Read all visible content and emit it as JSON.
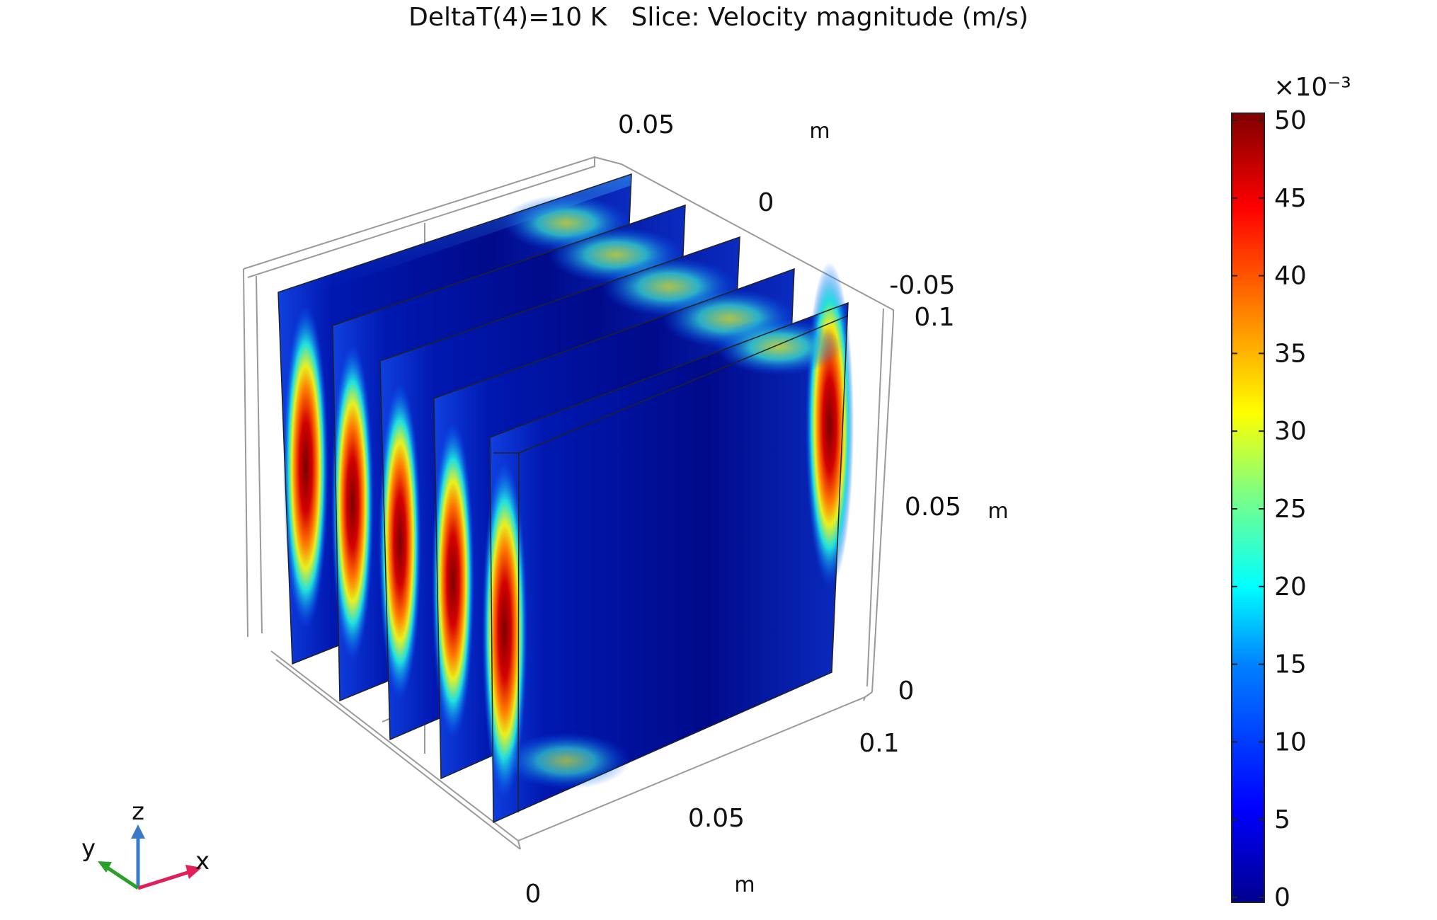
{
  "plot": {
    "title": "DeltaT(4)=10 K   Slice: Velocity magnitude (m/s)"
  },
  "axes": {
    "y_axis": {
      "ticks": [
        "0.05",
        "0",
        "-0.05"
      ],
      "unit": "m"
    },
    "z_axis": {
      "ticks": [
        "0.1",
        "0.05",
        "0"
      ],
      "unit": "m"
    },
    "x_axis": {
      "ticks": [
        "0.1",
        "0.05",
        "0"
      ],
      "unit": "m"
    }
  },
  "colorbar": {
    "multiplier": "×10⁻³",
    "ticks": [
      "50",
      "45",
      "40",
      "35",
      "30",
      "25",
      "20",
      "15",
      "10",
      "5",
      "0"
    ],
    "min": 0,
    "max": 50,
    "colormap": [
      "#00008f",
      "#0000ff",
      "#0080ff",
      "#00ffff",
      "#80ff80",
      "#ffff00",
      "#ff8000",
      "#ff0000",
      "#800000"
    ]
  },
  "slices": {
    "count": 5,
    "colors": {
      "low": "#00008f",
      "mid": "#0060ff",
      "high": "#a00000"
    }
  },
  "triad": {
    "x_label": "x",
    "y_label": "y",
    "z_label": "z",
    "x_color": "#e0205a",
    "y_color": "#2aa02a",
    "z_color": "#3a78c8"
  }
}
